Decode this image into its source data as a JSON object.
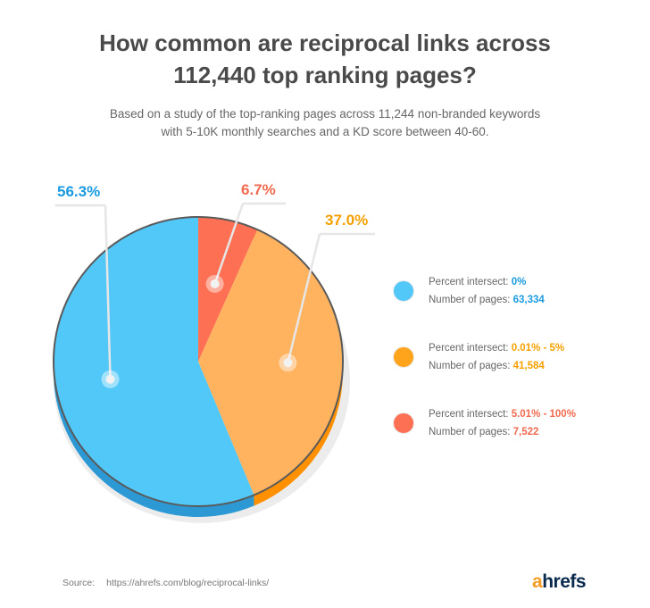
{
  "header": {
    "title_line1": "How common are reciprocal links across",
    "title_line2": "112,440 top ranking pages?",
    "subtitle_line1": "Based on a study of the top-ranking pages across 11,244 non-branded keywords",
    "subtitle_line2": "with 5-10K monthly searches and a KD score between 40-60."
  },
  "chart_data": {
    "type": "pie",
    "slices": [
      {
        "label": "56.3%",
        "value": 56.3,
        "color": "#52c8f9",
        "side_color": "#2c99d4"
      },
      {
        "label": "37.0%",
        "value": 37.0,
        "color": "#ffb35f",
        "side_color": "#ff9000"
      },
      {
        "label": "6.7%",
        "value": 6.7,
        "color": "#fd7053",
        "side_color": "#dc503a"
      }
    ],
    "label_colors": [
      "#1a9be0",
      "#f5a000",
      "#f26a4f"
    ]
  },
  "legend": [
    {
      "percent_label": "Percent intersect:",
      "percent_value": "0%",
      "pages_label": "Number of pages:",
      "pages_value": "63,334",
      "color": "#52c8f9",
      "text_color": "#1a9be0"
    },
    {
      "percent_label": "Percent intersect:",
      "percent_value": "0.01% - 5%",
      "pages_label": "Number of pages:",
      "pages_value": "41,584",
      "color": "#ffa41b",
      "text_color": "#f5a000"
    },
    {
      "percent_label": "Percent intersect:",
      "percent_value": "5.01% - 100%",
      "pages_label": "Number of pages:",
      "pages_value": "7,522",
      "color": "#fd7053",
      "text_color": "#f26a4f"
    }
  ],
  "footer": {
    "source_label": "Source:",
    "source_url": "https://ahrefs.com/blog/reciprocal-links/",
    "logo_a": "a",
    "logo_rest": "hrefs"
  }
}
